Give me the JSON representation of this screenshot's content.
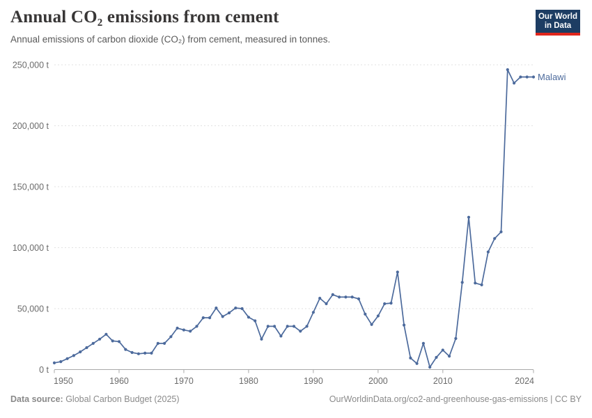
{
  "header": {
    "title": "Annual CO₂ emissions from cement",
    "subtitle": "Annual emissions of carbon dioxide (CO₂) from cement, measured in tonnes."
  },
  "logo": {
    "line1": "Our World",
    "line2": "in Data",
    "bg_color": "#1d3d63",
    "accent_color": "#e0261c"
  },
  "chart_data": {
    "type": "line",
    "title": "Annual CO₂ emissions from cement",
    "unit": "t",
    "xlabel": "",
    "ylabel": "",
    "xlim": [
      1950,
      2024
    ],
    "ylim": [
      0,
      250000
    ],
    "xticks": [
      1950,
      1960,
      1970,
      1980,
      1990,
      2000,
      2010,
      2024
    ],
    "yticks": [
      0,
      50000,
      100000,
      150000,
      200000,
      250000
    ],
    "ytick_suffix": " t",
    "grid": "horizontal-dashed",
    "grid_color": "#e2e2e2",
    "axis_color": "#a8a8a8",
    "tick_label_color": "#6b6b6b",
    "legend_position": "end-of-line-label",
    "x": [
      1950,
      1951,
      1952,
      1953,
      1954,
      1955,
      1956,
      1957,
      1958,
      1959,
      1960,
      1961,
      1962,
      1963,
      1964,
      1965,
      1966,
      1967,
      1968,
      1969,
      1970,
      1971,
      1972,
      1973,
      1974,
      1975,
      1976,
      1977,
      1978,
      1979,
      1980,
      1981,
      1982,
      1983,
      1984,
      1985,
      1986,
      1987,
      1988,
      1989,
      1990,
      1991,
      1992,
      1993,
      1994,
      1995,
      1996,
      1997,
      1998,
      1999,
      2000,
      2001,
      2002,
      2003,
      2004,
      2005,
      2006,
      2007,
      2008,
      2009,
      2010,
      2011,
      2012,
      2013,
      2014,
      2015,
      2016,
      2017,
      2018,
      2019,
      2020,
      2021,
      2022,
      2023,
      2024
    ],
    "series": [
      {
        "name": "Malawi",
        "color": "#4C6A9C",
        "values": [
          5500,
          6500,
          9000,
          11500,
          14500,
          18000,
          21500,
          25000,
          29000,
          23500,
          23000,
          16500,
          14000,
          13000,
          13500,
          13500,
          21500,
          21500,
          27000,
          34000,
          32500,
          31500,
          35500,
          42500,
          42500,
          50500,
          43500,
          46500,
          50500,
          50000,
          43000,
          40000,
          25000,
          35500,
          35500,
          27500,
          35500,
          35500,
          31500,
          35500,
          47000,
          58500,
          54000,
          61500,
          59500,
          59500,
          59500,
          58000,
          45500,
          37000,
          44000,
          54000,
          54500,
          80000,
          36500,
          9500,
          5000,
          21500,
          2000,
          10000,
          16000,
          11000,
          25500,
          71500,
          125000,
          71000,
          69500,
          96500,
          107500,
          113000,
          246000,
          235000,
          240000,
          240000,
          240000
        ]
      }
    ]
  },
  "footer": {
    "source_label": "Data source:",
    "source_text": " Global Carbon Budget (2025)",
    "attribution": "OurWorldinData.org/co2-and-greenhouse-gas-emissions | CC BY"
  }
}
